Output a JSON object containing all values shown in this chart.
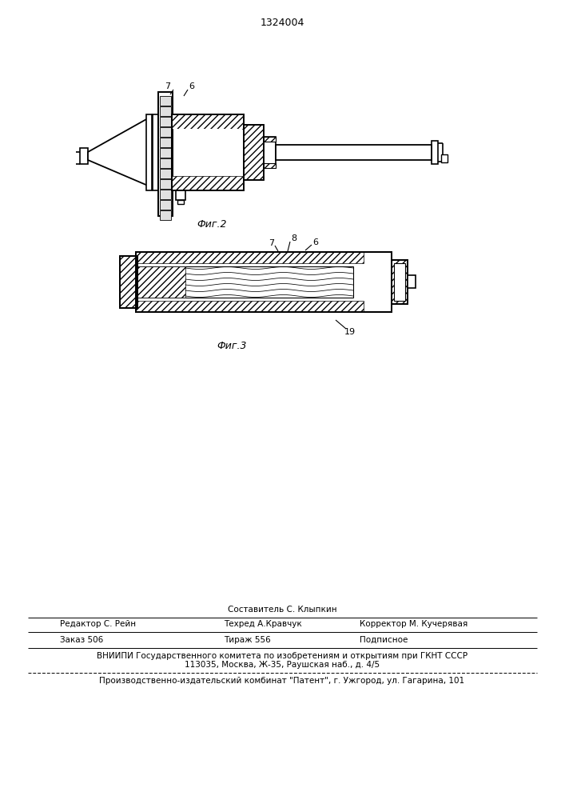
{
  "patent_number": "1324004",
  "background_color": "#ffffff",
  "fig_width": 7.07,
  "fig_height": 10.0,
  "line_color": "#000000",
  "fig2_label": "Фиг.2",
  "fig3_label": "Фиг.3",
  "footer": {
    "sostavitel": "Составитель С. Клыпкин",
    "redaktor": "Редактор С. Рейн",
    "tehred": "Техред А.Кравчук",
    "korrektor": "Корректор М. Кучерявая",
    "zakaz": "Заказ 506",
    "tirazh": "Тираж 556",
    "podpisnoe": "Подписное",
    "vniip1": "ВНИИПИ Государственного комитета по изобретениям и открытиям при ГКНТ СССР",
    "vniip2": "113035, Москва, Ж-35, Раушская наб., д. 4/5",
    "patent_line": "Производственно-издательский комбинат \"Патент\", г. Ужгород, ул. Гагарина, 101"
  }
}
